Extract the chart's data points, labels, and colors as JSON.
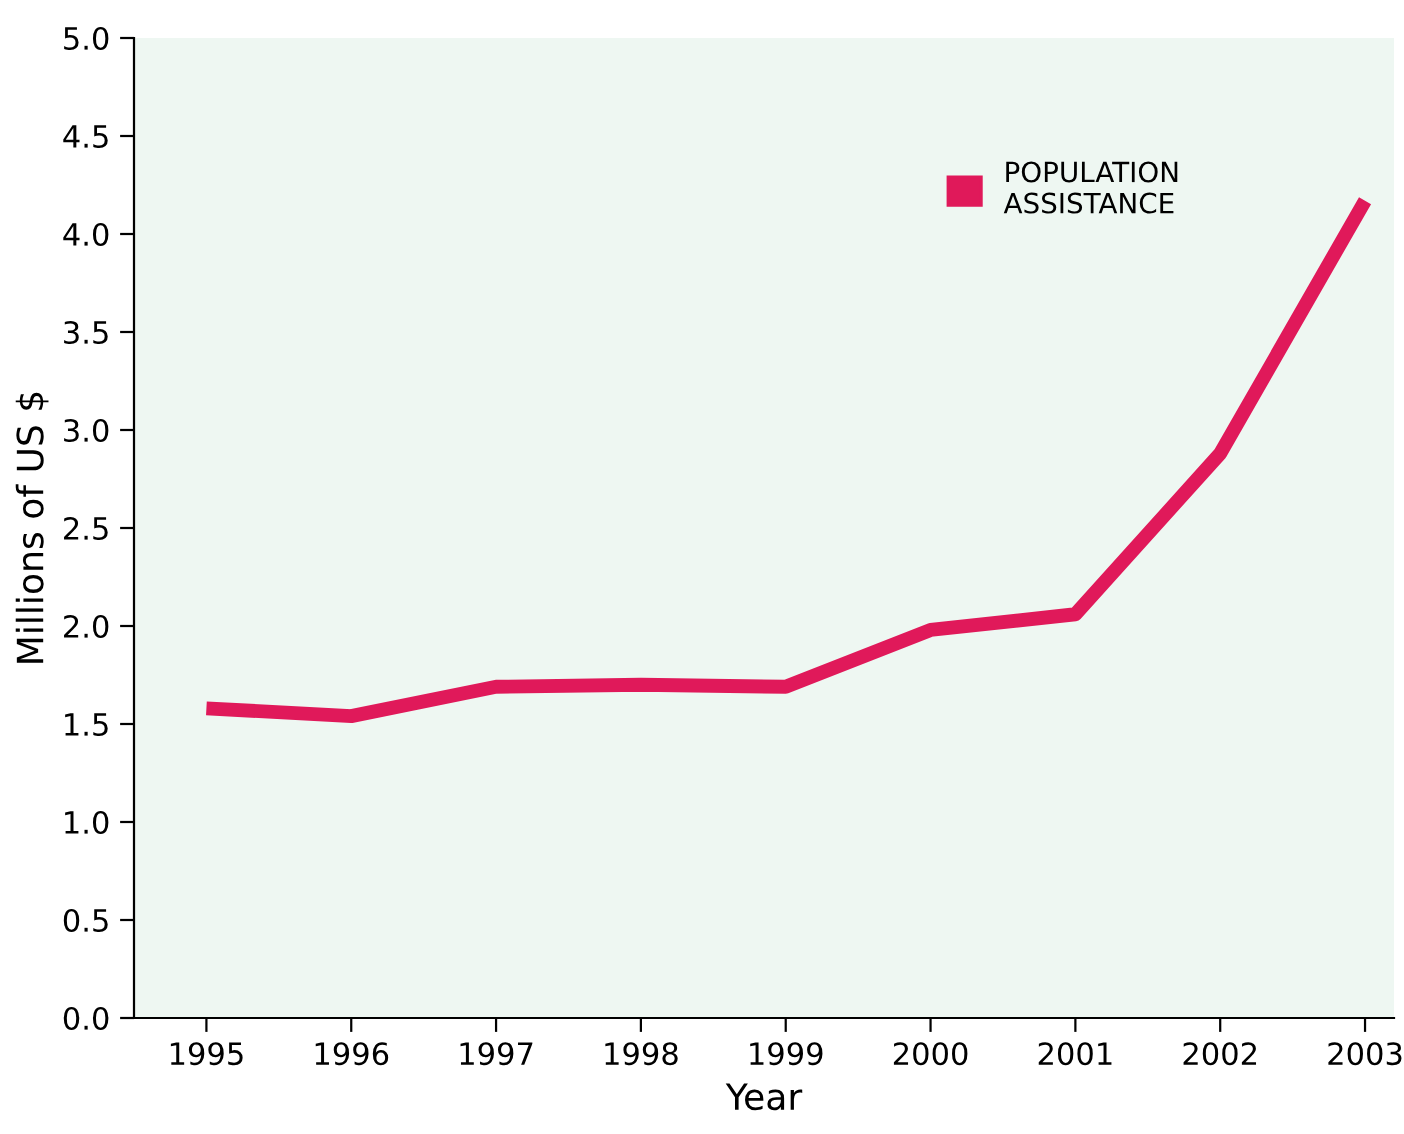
{
  "chart_data": {
    "type": "line",
    "xlabel": "Year",
    "ylabel": "Millions of US $",
    "x": [
      1995,
      1996,
      1997,
      1998,
      1999,
      2000,
      2001,
      2002,
      2003
    ],
    "series": [
      {
        "name": "POPULATION\nASSISTANCE",
        "color": "#e0195a",
        "values": [
          1.58,
          1.54,
          1.69,
          1.7,
          1.69,
          1.98,
          2.06,
          2.88,
          4.17
        ]
      }
    ],
    "xlim": [
      1994.5,
      2003.2
    ],
    "xticks": [
      1995,
      1996,
      1997,
      1998,
      1999,
      2000,
      2001,
      2002,
      2003
    ],
    "ylim": [
      0,
      5
    ],
    "yticks": [
      {
        "value": 0,
        "label": "0.0"
      },
      {
        "value": 0.5,
        "label": "0.5"
      },
      {
        "value": 1,
        "label": "1.0"
      },
      {
        "value": 1.5,
        "label": "1.5"
      },
      {
        "value": 2,
        "label": "2.0"
      },
      {
        "value": 2.5,
        "label": "2.5"
      },
      {
        "value": 3,
        "label": "3.0"
      },
      {
        "value": 3.5,
        "label": "3.5"
      },
      {
        "value": 4,
        "label": "4.0"
      },
      {
        "value": 4.5,
        "label": "4.5"
      },
      {
        "value": 5,
        "label": "5.0"
      }
    ],
    "grid": false,
    "legend": "top right",
    "line_style": "solid",
    "marker": "none"
  }
}
